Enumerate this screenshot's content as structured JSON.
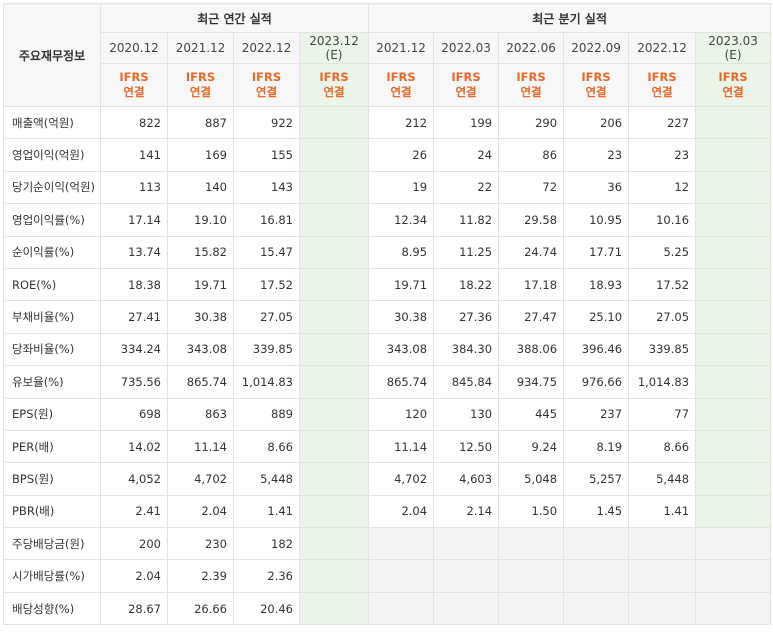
{
  "corner_label": "주요재무정보",
  "annual_group_label": "최근 연간 실적",
  "quarter_group_label": "최근 분기 실적",
  "annual_periods": [
    "2020.12",
    "2021.12",
    "2022.12"
  ],
  "annual_estimate": {
    "period": "2023.12",
    "tag": "(E)"
  },
  "quarter_periods": [
    "2021.12",
    "2022.03",
    "2022.06",
    "2022.09",
    "2022.12"
  ],
  "quarter_estimate": {
    "period": "2023.03",
    "tag": "(E)"
  },
  "ifrs_label": "IFRS",
  "consolidated_label": "연결",
  "rows": [
    {
      "label": "매출액(억원)",
      "group_start": true,
      "annual": [
        "822",
        "887",
        "922"
      ],
      "quarter": [
        "212",
        "199",
        "290",
        "206",
        "227"
      ]
    },
    {
      "label": "영업이익(억원)",
      "annual": [
        "141",
        "169",
        "155"
      ],
      "quarter": [
        "26",
        "24",
        "86",
        "23",
        "23"
      ]
    },
    {
      "label": "당기순이익(억원)",
      "annual": [
        "113",
        "140",
        "143"
      ],
      "quarter": [
        "19",
        "22",
        "72",
        "36",
        "12"
      ]
    },
    {
      "label": "영업이익률(%)",
      "group_start": true,
      "annual": [
        "17.14",
        "19.10",
        "16.81"
      ],
      "quarter": [
        "12.34",
        "11.82",
        "29.58",
        "10.95",
        "10.16"
      ]
    },
    {
      "label": "순이익률(%)",
      "annual": [
        "13.74",
        "15.82",
        "15.47"
      ],
      "quarter": [
        "8.95",
        "11.25",
        "24.74",
        "17.71",
        "5.25"
      ]
    },
    {
      "label": "ROE(%)",
      "annual": [
        "18.38",
        "19.71",
        "17.52"
      ],
      "quarter": [
        "19.71",
        "18.22",
        "17.18",
        "18.93",
        "17.52"
      ]
    },
    {
      "label": "부채비율(%)",
      "group_start": true,
      "annual": [
        "27.41",
        "30.38",
        "27.05"
      ],
      "quarter": [
        "30.38",
        "27.36",
        "27.47",
        "25.10",
        "27.05"
      ]
    },
    {
      "label": "당좌비율(%)",
      "annual": [
        "334.24",
        "343.08",
        "339.85"
      ],
      "quarter": [
        "343.08",
        "384.30",
        "388.06",
        "396.46",
        "339.85"
      ]
    },
    {
      "label": "유보율(%)",
      "annual": [
        "735.56",
        "865.74",
        "1,014.83"
      ],
      "quarter": [
        "865.74",
        "845.84",
        "934.75",
        "976.66",
        "1,014.83"
      ]
    },
    {
      "label": "EPS(원)",
      "group_start": true,
      "annual": [
        "698",
        "863",
        "889"
      ],
      "quarter": [
        "120",
        "130",
        "445",
        "237",
        "77"
      ]
    },
    {
      "label": "PER(배)",
      "annual": [
        "14.02",
        "11.14",
        "8.66"
      ],
      "quarter": [
        "11.14",
        "12.50",
        "9.24",
        "8.19",
        "8.66"
      ]
    },
    {
      "label": "BPS(원)",
      "annual": [
        "4,052",
        "4,702",
        "5,448"
      ],
      "quarter": [
        "4,702",
        "4,603",
        "5,048",
        "5,257",
        "5,448"
      ]
    },
    {
      "label": "PBR(배)",
      "annual": [
        "2.41",
        "2.04",
        "1.41"
      ],
      "quarter": [
        "2.04",
        "2.14",
        "1.50",
        "1.45",
        "1.41"
      ]
    },
    {
      "label": "주당배당금(원)",
      "group_start": true,
      "quarter_empty": true,
      "annual": [
        "200",
        "230",
        "182"
      ],
      "quarter": []
    },
    {
      "label": "시가배당률(%)",
      "quarter_empty": true,
      "annual": [
        "2.04",
        "2.39",
        "2.36"
      ],
      "quarter": []
    },
    {
      "label": "배당성향(%)",
      "quarter_empty": true,
      "annual": [
        "28.67",
        "26.66",
        "20.46"
      ],
      "quarter": []
    }
  ]
}
